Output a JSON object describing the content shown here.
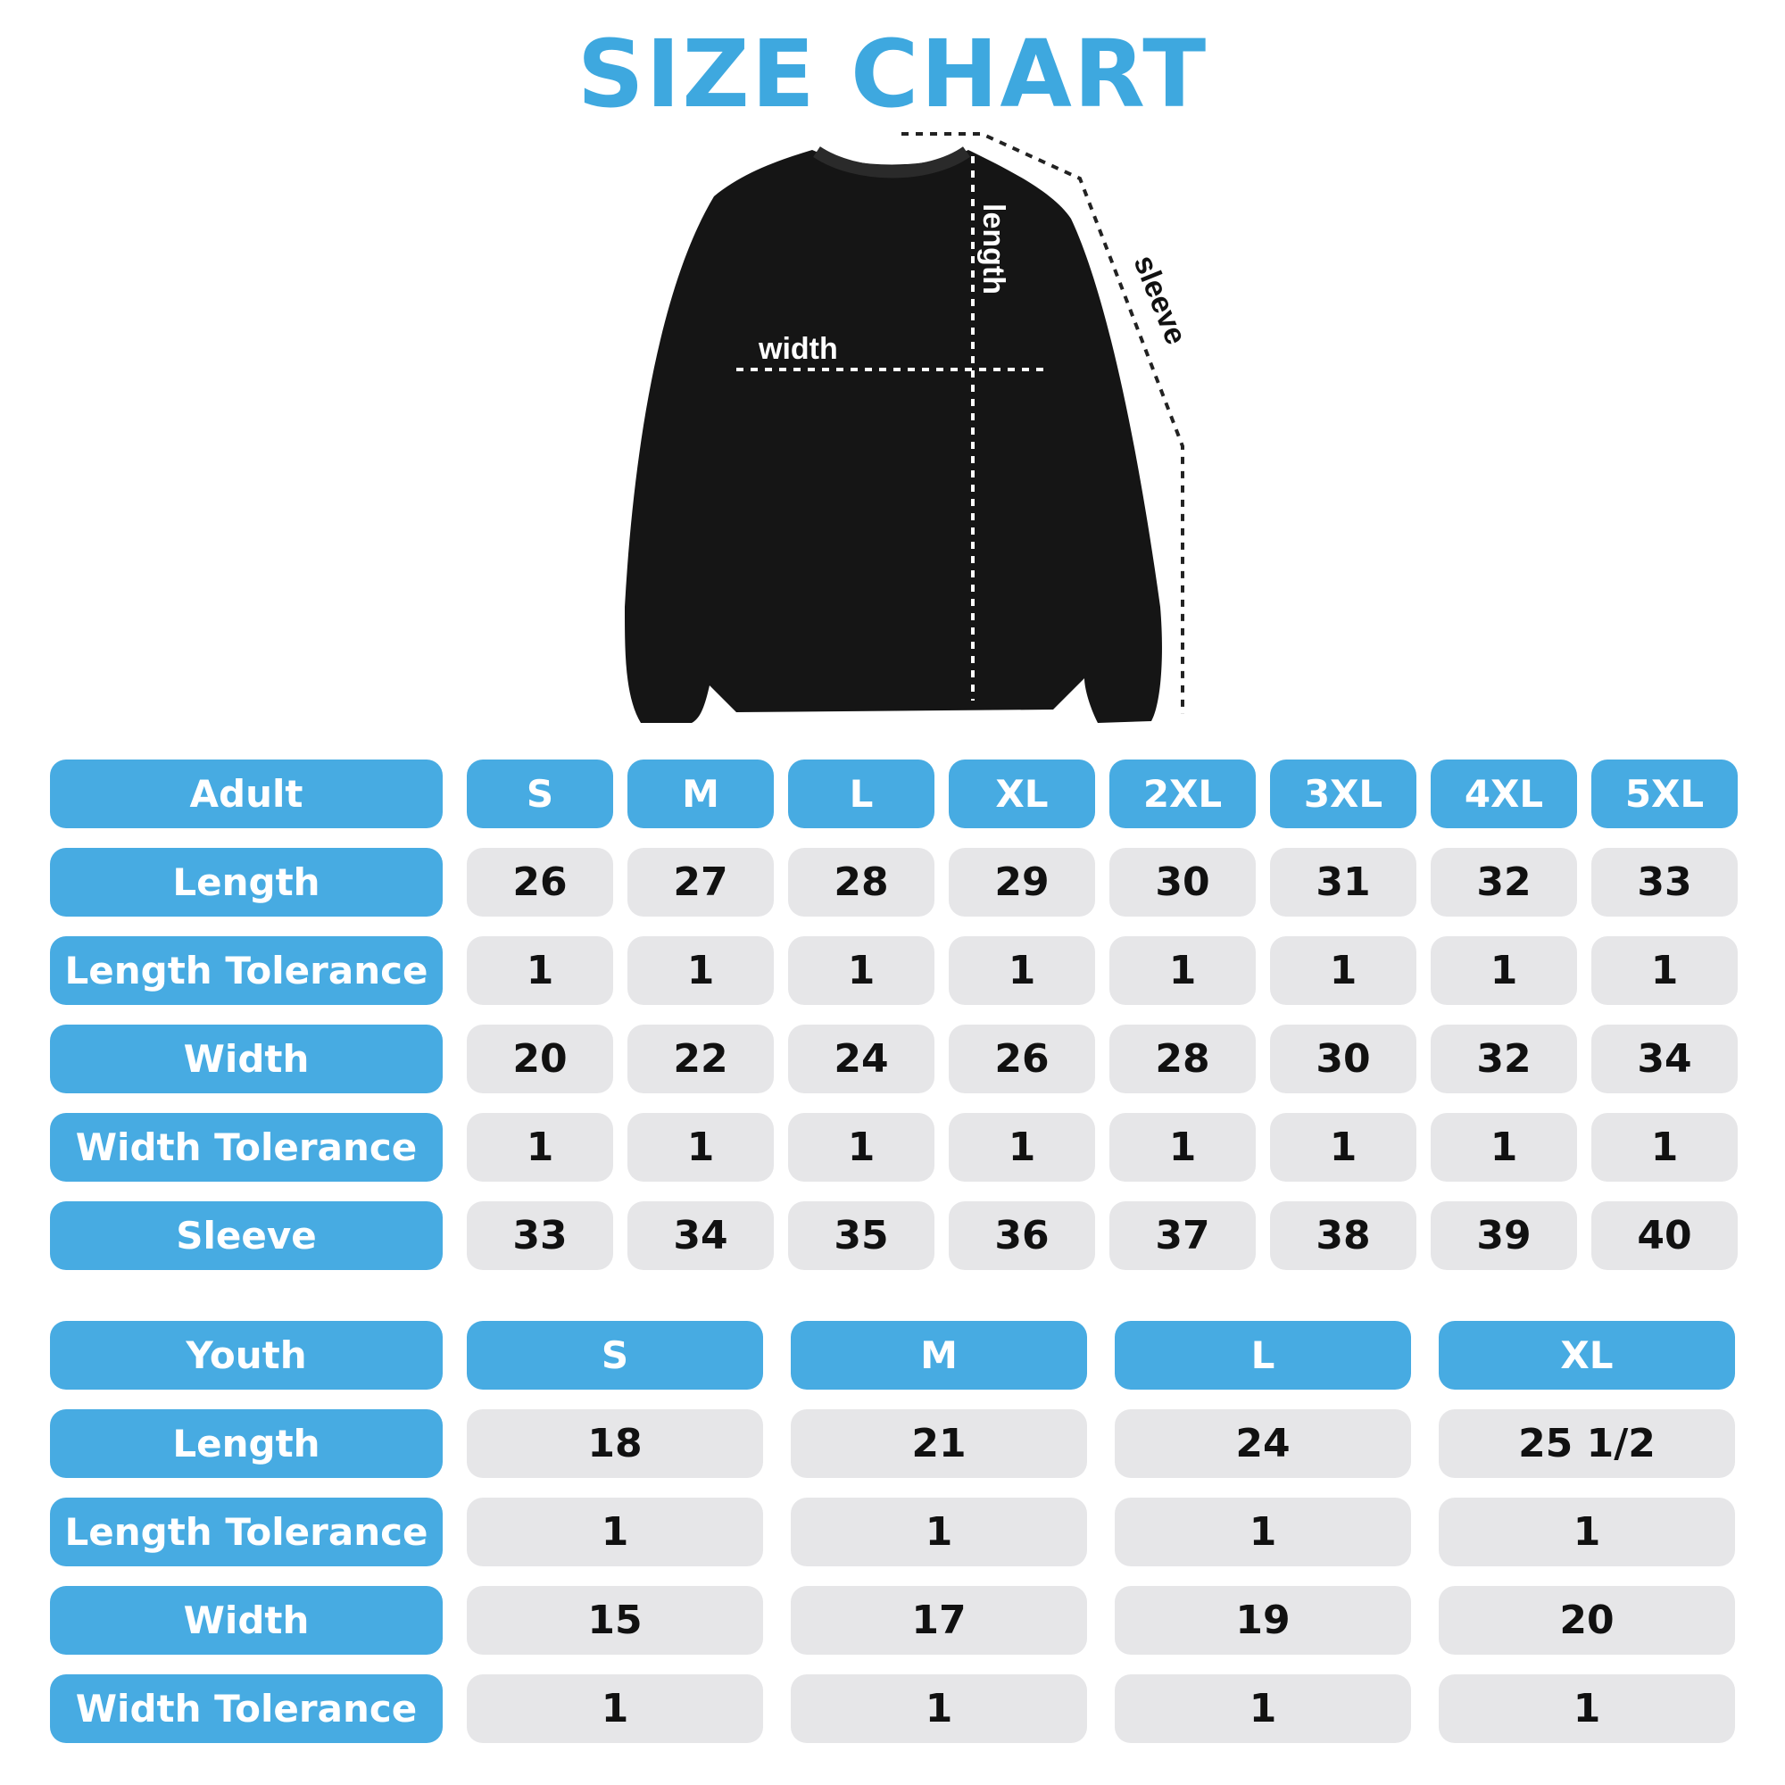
{
  "title": "SIZE CHART",
  "diagram": {
    "length_label": "length",
    "width_label": "width",
    "sleeve_label": "sleeve"
  },
  "colors": {
    "accent": "#47abe2",
    "cell": "#e6e6e8",
    "title": "#3ea8df"
  },
  "adult": {
    "header": "Adult",
    "sizes": [
      "S",
      "M",
      "L",
      "XL",
      "2XL",
      "3XL",
      "4XL",
      "5XL"
    ],
    "rows": [
      {
        "label": "Length",
        "values": [
          "26",
          "27",
          "28",
          "29",
          "30",
          "31",
          "32",
          "33"
        ]
      },
      {
        "label": "Length Tolerance",
        "values": [
          "1",
          "1",
          "1",
          "1",
          "1",
          "1",
          "1",
          "1"
        ]
      },
      {
        "label": "Width",
        "values": [
          "20",
          "22",
          "24",
          "26",
          "28",
          "30",
          "32",
          "34"
        ]
      },
      {
        "label": "Width Tolerance",
        "values": [
          "1",
          "1",
          "1",
          "1",
          "1",
          "1",
          "1",
          "1"
        ]
      },
      {
        "label": "Sleeve",
        "values": [
          "33",
          "34",
          "35",
          "36",
          "37",
          "38",
          "39",
          "40"
        ]
      }
    ]
  },
  "youth": {
    "header": "Youth",
    "sizes": [
      "S",
      "M",
      "L",
      "XL"
    ],
    "rows": [
      {
        "label": "Length",
        "values": [
          "18",
          "21",
          "24",
          "25 1/2"
        ]
      },
      {
        "label": "Length Tolerance",
        "values": [
          "1",
          "1",
          "1",
          "1"
        ]
      },
      {
        "label": "Width",
        "values": [
          "15",
          "17",
          "19",
          "20"
        ]
      },
      {
        "label": "Width Tolerance",
        "values": [
          "1",
          "1",
          "1",
          "1"
        ]
      }
    ]
  }
}
